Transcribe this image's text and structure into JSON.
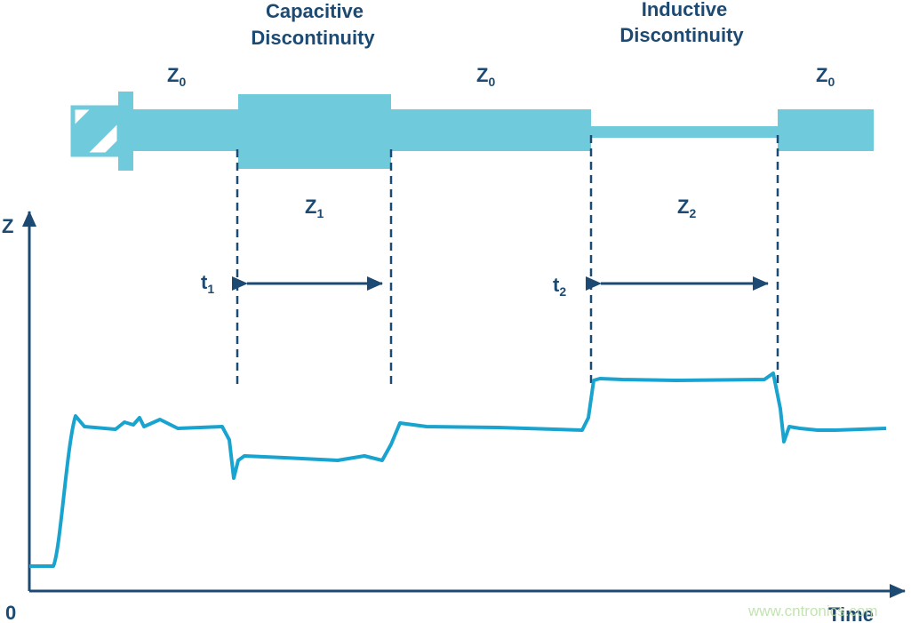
{
  "labels": {
    "capacitive": [
      "Capacitive",
      "Discontinuity"
    ],
    "inductive": [
      "Inductive",
      "Discontinuity"
    ],
    "z0": [
      {
        "base": "Z",
        "sub": "0"
      },
      {
        "base": "Z",
        "sub": "0"
      },
      {
        "base": "Z",
        "sub": "0"
      }
    ],
    "z1": {
      "base": "Z",
      "sub": "1"
    },
    "z2": {
      "base": "Z",
      "sub": "2"
    },
    "t1": {
      "base": "t",
      "sub": "1"
    },
    "t2": {
      "base": "t",
      "sub": "2"
    }
  },
  "axes": {
    "y_label": "Z",
    "origin": "0",
    "x_label": "Time"
  },
  "watermark": "www.cntronics.com"
}
